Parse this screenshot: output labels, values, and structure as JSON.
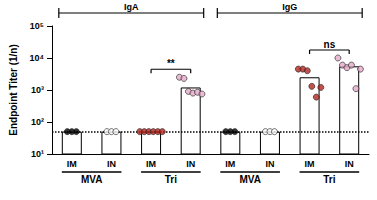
{
  "chart_data": {
    "type": "bar",
    "ylabel": "Endpoint Titer (1/n)",
    "categories": [
      "IM",
      "IN",
      "IM",
      "IN",
      "IM",
      "IN",
      "IM",
      "IN"
    ],
    "values": [
      50,
      50,
      50,
      1200,
      50,
      50,
      2500,
      5500
    ],
    "points": [
      [
        50,
        50,
        50
      ],
      [
        50,
        50,
        50
      ],
      [
        50,
        50,
        50,
        50,
        50,
        50
      ],
      [
        2500,
        2300,
        900,
        800,
        850,
        750
      ],
      [
        50,
        50,
        50
      ],
      [
        50,
        50,
        50
      ],
      [
        4500,
        4500,
        4000,
        1300,
        600,
        1200
      ],
      [
        10000,
        6000,
        5000,
        6000,
        1100,
        4500
      ]
    ],
    "colors": [
      "#000000",
      "#ffffff",
      "#b3261e",
      "#e6a9c9",
      "#000000",
      "#ffffff",
      "#b3261e",
      "#e6a9c9"
    ],
    "groups": [
      {
        "label": "IgA",
        "span": [
          0,
          3
        ]
      },
      {
        "label": "IgG",
        "span": [
          4,
          7
        ]
      }
    ],
    "subgroups": [
      {
        "label": "MVA",
        "span": [
          0,
          1
        ]
      },
      {
        "label": "Tri",
        "span": [
          2,
          3
        ]
      },
      {
        "label": "MVA",
        "span": [
          4,
          5
        ]
      },
      {
        "label": "Tri",
        "span": [
          6,
          7
        ]
      }
    ],
    "significance": [
      {
        "label": "**",
        "span": [
          2,
          3
        ]
      },
      {
        "label": "ns",
        "span": [
          6,
          7
        ]
      }
    ],
    "reference_line": 50,
    "log": "y",
    "ylim": [
      10,
      100000
    ],
    "yticks": [
      {
        "value": 10,
        "label": "10¹"
      },
      {
        "value": 100,
        "label": "10²"
      },
      {
        "value": 1000,
        "label": "10³"
      },
      {
        "value": 10000,
        "label": "10⁴"
      },
      {
        "value": 100000,
        "label": "10⁵"
      }
    ],
    "grid": false
  }
}
